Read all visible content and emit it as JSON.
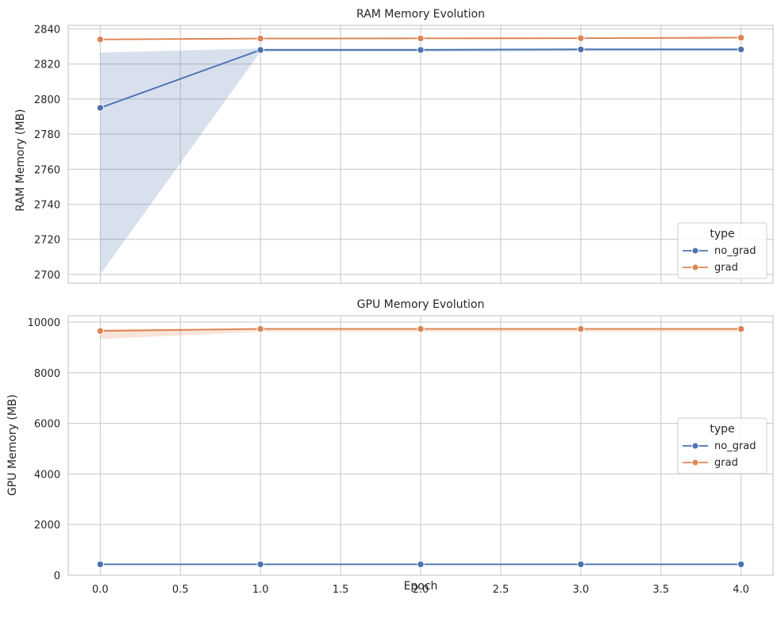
{
  "xlabel": "Epoch",
  "colors": {
    "no_grad": "#4c72b0",
    "grad": "#dd8452",
    "grid": "#cccccc",
    "background": "#ffffff"
  },
  "chart_data": [
    {
      "type": "line",
      "title": "RAM Memory Evolution",
      "xlabel": "",
      "ylabel": "RAM Memory (MB)",
      "x": [
        0,
        1,
        2,
        3,
        4
      ],
      "xlim": [
        -0.2,
        4.2
      ],
      "ylim": [
        2695,
        2842
      ],
      "yticks": [
        2700,
        2720,
        2740,
        2760,
        2780,
        2800,
        2820,
        2840
      ],
      "xticks_shown": false,
      "grid": true,
      "legend": {
        "title": "type",
        "placement": "lower-right",
        "entries": [
          "no_grad",
          "grad"
        ]
      },
      "series": [
        {
          "name": "no_grad",
          "values": [
            2795,
            2828,
            2828,
            2828.3,
            2828.3
          ],
          "band_low": [
            2700,
            2827,
            2827,
            2827.3,
            2827.3
          ],
          "band_high": [
            2826.5,
            2828.8,
            2828.8,
            2829.1,
            2829.1
          ]
        },
        {
          "name": "grad",
          "values": [
            2834,
            2834.5,
            2834.6,
            2834.7,
            2835
          ],
          "band_low": [
            2833.6,
            2834.1,
            2834.2,
            2834.3,
            2834.6
          ],
          "band_high": [
            2834.4,
            2834.9,
            2835,
            2835.1,
            2835.4
          ]
        }
      ]
    },
    {
      "type": "line",
      "title": "GPU Memory Evolution",
      "xlabel": "Epoch",
      "ylabel": "GPU Memory (MB)",
      "x": [
        0,
        1,
        2,
        3,
        4
      ],
      "xlim": [
        -0.2,
        4.2
      ],
      "ylim": [
        0,
        10250
      ],
      "yticks": [
        0,
        2000,
        4000,
        6000,
        8000,
        10000
      ],
      "xticks": [
        0.0,
        0.5,
        1.0,
        1.5,
        2.0,
        2.5,
        3.0,
        3.5,
        4.0
      ],
      "xticklabels": [
        "0.0",
        "0.5",
        "1.0",
        "1.5",
        "2.0",
        "2.5",
        "3.0",
        "3.5",
        "4.0"
      ],
      "xticks_shown": true,
      "grid": true,
      "legend": {
        "title": "type",
        "placement": "center-right",
        "entries": [
          "no_grad",
          "grad"
        ]
      },
      "series": [
        {
          "name": "no_grad",
          "values": [
            430,
            430,
            430,
            430,
            430
          ],
          "band_low": [
            430,
            430,
            430,
            430,
            430
          ],
          "band_high": [
            430,
            430,
            430,
            430,
            430
          ]
        },
        {
          "name": "grad",
          "values": [
            9650,
            9730,
            9730,
            9730,
            9730
          ],
          "band_low": [
            9330,
            9620,
            9620,
            9620,
            9620
          ],
          "band_high": [
            9730,
            9760,
            9760,
            9760,
            9760
          ]
        }
      ]
    }
  ]
}
